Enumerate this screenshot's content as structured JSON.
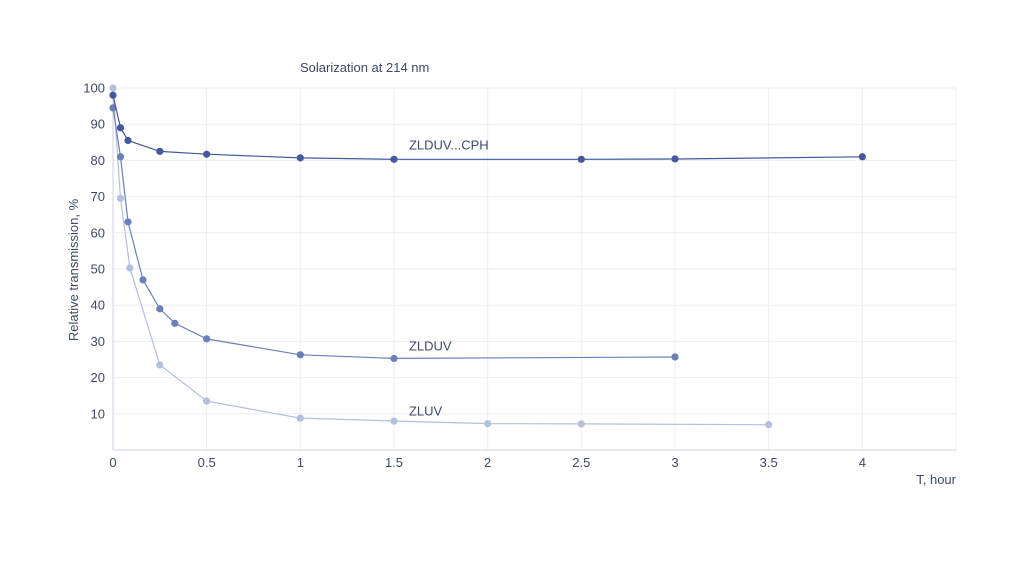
{
  "chart_data": {
    "type": "line",
    "title": "Solarization at 214 nm",
    "xlabel": "T, hour",
    "ylabel": "Relative transmission, %",
    "xlim": [
      0,
      4.5
    ],
    "ylim": [
      0,
      100
    ],
    "x_ticks": [
      "0",
      "0.5",
      "1",
      "1.5",
      "2",
      "2.5",
      "3",
      "3.5",
      "4"
    ],
    "y_ticks": [
      "10",
      "20",
      "30",
      "40",
      "50",
      "60",
      "70",
      "80",
      "90",
      "100"
    ],
    "grid": true,
    "series": [
      {
        "name": "ZLDUV...CPH",
        "color": "#44589b",
        "x": [
          0,
          0.04,
          0.08,
          0.25,
          0.5,
          1,
          1.5,
          2.5,
          3,
          4
        ],
        "y": [
          98,
          89,
          85.5,
          82.5,
          81.7,
          80.7,
          80.3,
          80.3,
          80.4,
          81
        ],
        "label_at": [
          1.58,
          83
        ]
      },
      {
        "name": "ZLDUV",
        "color": "#6b7fb9",
        "x": [
          0,
          0.04,
          0.08,
          0.16,
          0.25,
          0.33,
          0.5,
          1,
          1.5,
          3
        ],
        "y": [
          94.5,
          81,
          63,
          47,
          39,
          35,
          30.7,
          26.3,
          25.3,
          25.7
        ],
        "label_at": [
          1.58,
          27.5
        ]
      },
      {
        "name": "ZLUV",
        "color": "#b5bfdc",
        "x": [
          0,
          0.04,
          0.09,
          0.25,
          0.5,
          1,
          1.5,
          2,
          2.5,
          3.5
        ],
        "y": [
          100,
          69.5,
          50.3,
          23.5,
          13.5,
          8.8,
          8,
          7.3,
          7.2,
          7
        ],
        "label_at": [
          1.58,
          9.5
        ]
      }
    ]
  }
}
